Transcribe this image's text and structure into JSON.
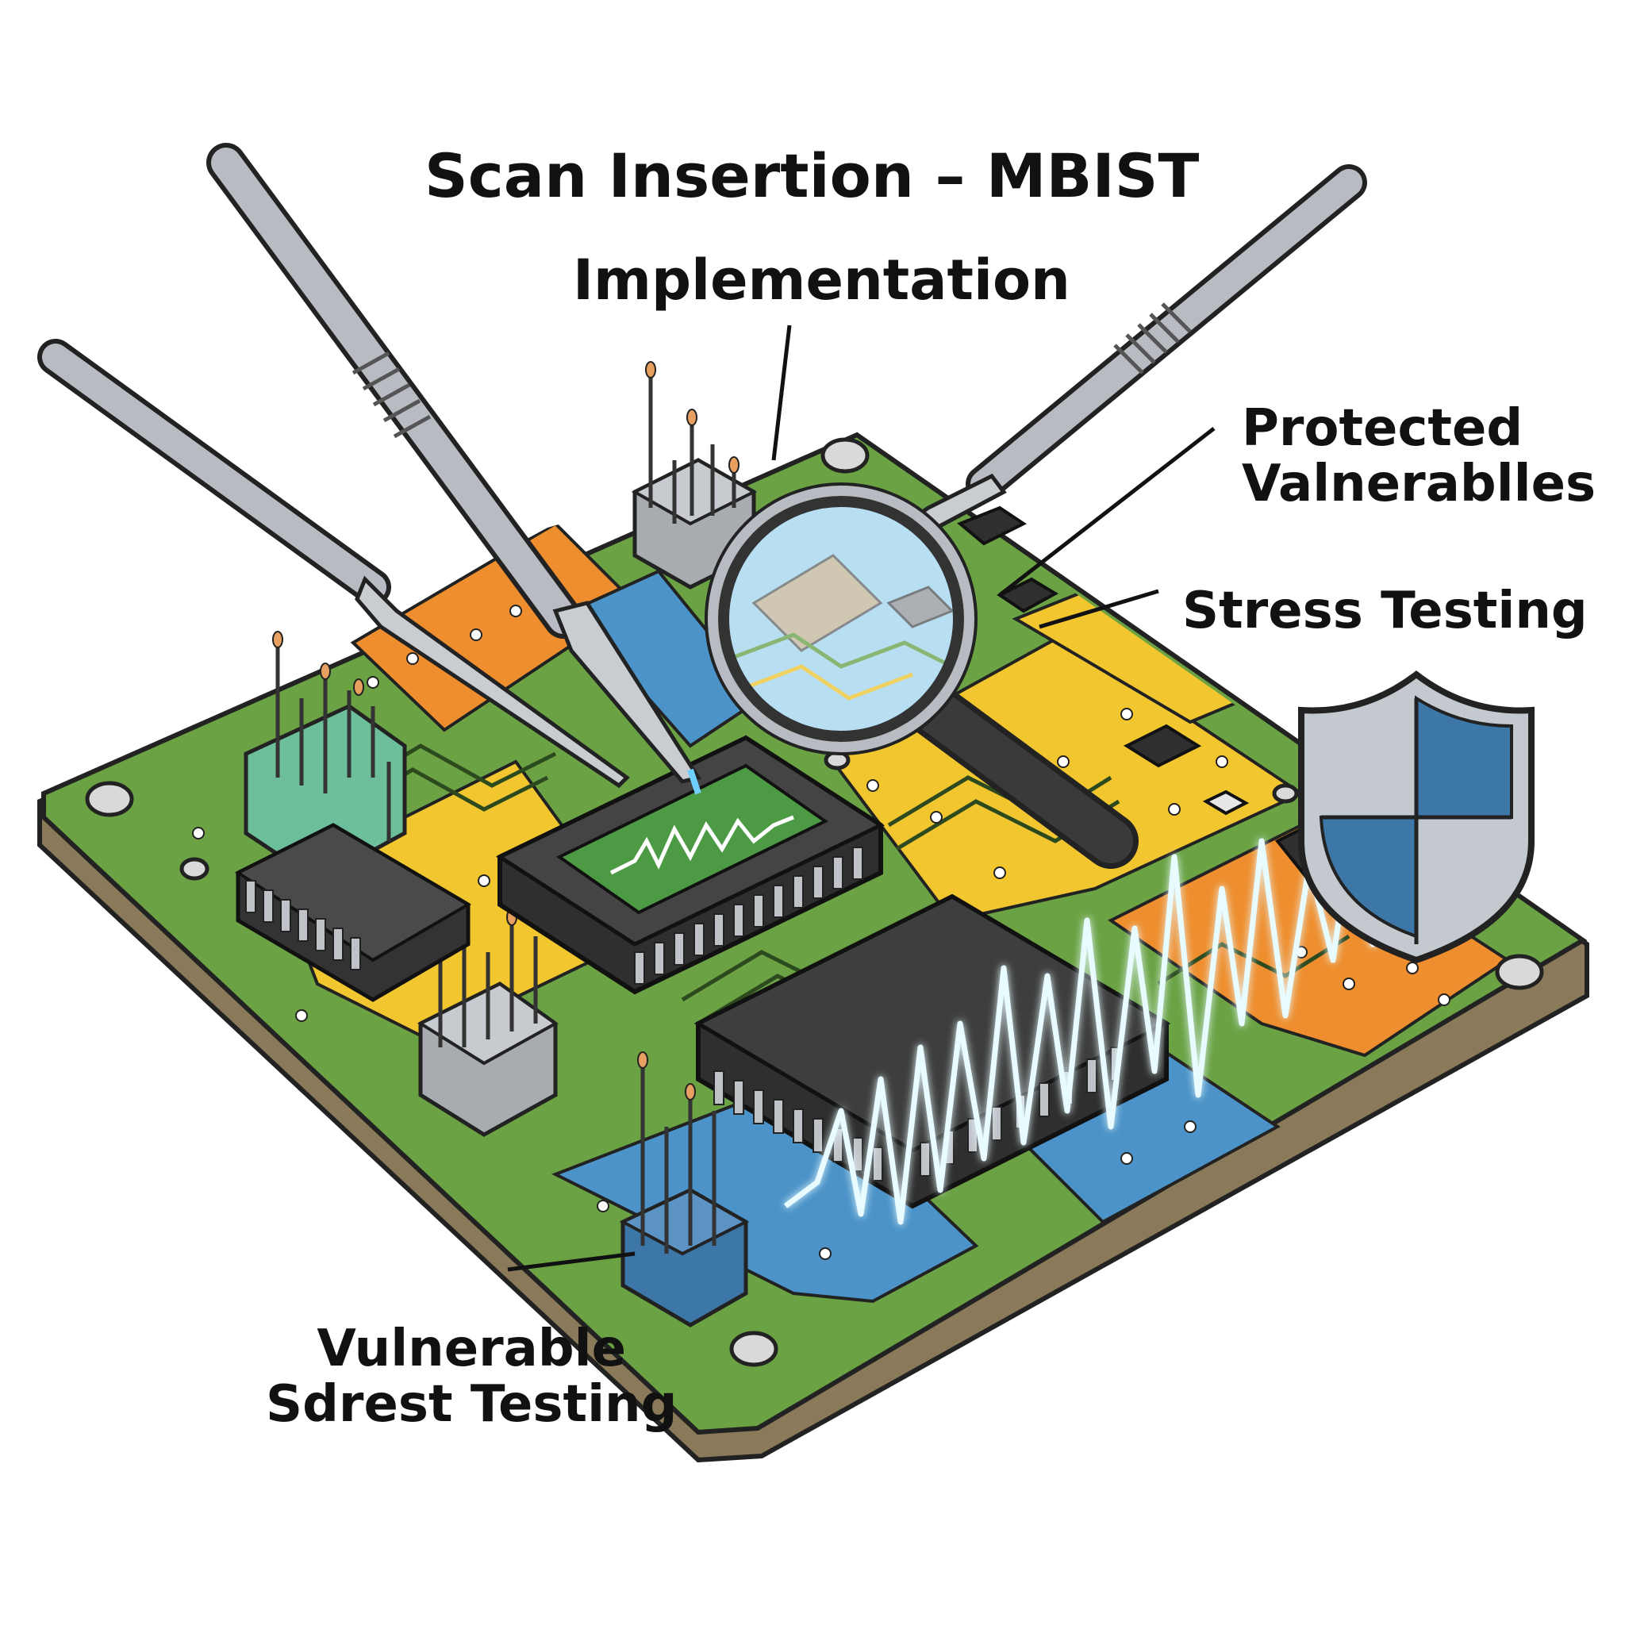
{
  "title": {
    "line1": "Scan Insertion – MBIST",
    "line2": "Implementation"
  },
  "labels": {
    "protected": [
      "Protected",
      "Valnerablles"
    ],
    "stress": "Stress Testing",
    "vulnerable": [
      "Vulnerable",
      "Sdrest Testing"
    ]
  },
  "colors": {
    "pcb_green": "#6aa244",
    "pcb_edge": "#8a7a5a",
    "zone_orange": "#ee8e2e",
    "zone_yellow": "#f2c62e",
    "zone_blue": "#4b93c8",
    "chip": "#333333",
    "tool_metal": "#b8bcc2",
    "waveform": "#e8fbff",
    "shield_blue": "#3d77a8",
    "shield_gray": "#c4c9cf"
  },
  "icons": [
    "scalpel-icon",
    "magnifying-glass-icon",
    "shield-icon",
    "microchip-icon",
    "pin-header-icon",
    "waveform-icon"
  ]
}
